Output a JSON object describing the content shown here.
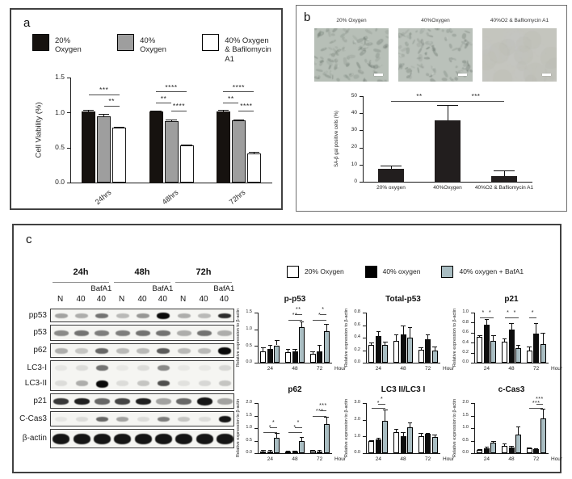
{
  "panels": {
    "a": {
      "letter": "a",
      "legend": [
        {
          "label": "20% Oxygen",
          "color": "#16120f"
        },
        {
          "label": "40% Oxygen",
          "color": "#9e9e9e"
        },
        {
          "label": "40% Oxygen\n& Bafilomycin A1",
          "color": "#ffffff"
        }
      ]
    },
    "b": {
      "letter": "b",
      "micrographs": [
        {
          "label": "20% Oxygen",
          "appearance": "cells"
        },
        {
          "label": "40%Oxygen",
          "appearance": "cells"
        },
        {
          "label": "40%O2 & Bafliomycin A1",
          "appearance": "blurred"
        }
      ]
    },
    "c": {
      "letter": "c",
      "legend": [
        {
          "label": "20% Oxygen",
          "color": "#ffffff"
        },
        {
          "label": "40% oxygen",
          "color": "#000000"
        },
        {
          "label": "40% oxygen + BafA1",
          "color": "#a9bdc2"
        }
      ],
      "blot": {
        "time_groups": [
          "24h",
          "48h",
          "72h"
        ],
        "treatment_label": "BafA1",
        "lane_labels": [
          "N",
          "40",
          "40",
          "N",
          "40",
          "40",
          "N",
          "40",
          "40"
        ],
        "rows": [
          {
            "label": "pp53",
            "bands": [
              0.35,
              0.3,
              0.55,
              0.25,
              0.4,
              1.0,
              0.3,
              0.25,
              0.85
            ]
          },
          {
            "label": "p53",
            "bands": [
              0.45,
              0.55,
              0.5,
              0.5,
              0.55,
              0.55,
              0.3,
              0.55,
              0.3
            ]
          },
          {
            "label": "p62",
            "bands": [
              0.3,
              0.2,
              0.6,
              0.25,
              0.25,
              0.65,
              0.25,
              0.25,
              1.0
            ]
          },
          {
            "labels": [
              "LC3-I",
              "LC3-II"
            ],
            "bands2": [
              [
                0.06,
                0.1,
                0.55,
                0.05,
                0.1,
                0.45,
                0.05,
                0.05,
                0.12
              ],
              [
                0.1,
                0.3,
                1.0,
                0.1,
                0.2,
                0.7,
                0.08,
                0.12,
                0.2
              ]
            ]
          },
          {
            "label": "p21",
            "bands": [
              0.8,
              0.9,
              0.6,
              0.75,
              0.9,
              0.35,
              0.6,
              0.95,
              0.35
            ]
          },
          {
            "label": "C-Cas3",
            "bands": [
              0.06,
              0.1,
              0.6,
              0.35,
              0.1,
              0.5,
              0.2,
              0.1,
              0.95
            ]
          },
          {
            "label": "β-actin",
            "bands": [
              0.95,
              0.95,
              0.95,
              0.95,
              0.95,
              0.95,
              0.95,
              0.95,
              0.95
            ]
          }
        ]
      }
    }
  },
  "chart_data": [
    {
      "id": "chart-a",
      "type": "grouped-bar",
      "title": "",
      "ylabel": "Cell Viability (%)",
      "xlabel": "",
      "ymax": 1.5,
      "ytick_values": [
        0,
        0.5,
        1.0,
        1.5
      ],
      "ytick_labels": [
        "0.0",
        "0.5",
        "1.0",
        "1.5"
      ],
      "categories": [
        "24hrs",
        "48hrs",
        "72hrs"
      ],
      "series": [
        {
          "name": "20% Oxygen",
          "color": "#16120f",
          "values": [
            1.01,
            1.01,
            1.01
          ],
          "errors": [
            0.02,
            0.01,
            0.02
          ]
        },
        {
          "name": "40% Oxygen",
          "color": "#9e9e9e",
          "border": "#1a1a1a",
          "values": [
            0.95,
            0.88,
            0.89
          ],
          "errors": [
            0.03,
            0.01,
            0.01
          ]
        },
        {
          "name": "40% Oxygen & Bafilomycin A1",
          "color": "#ffffff",
          "border": "#1a1a1a",
          "values": [
            0.78,
            0.53,
            0.42
          ],
          "errors": [
            0.01,
            0.01,
            0.01
          ]
        }
      ],
      "sig": [
        {
          "a": [
            0,
            0
          ],
          "b": [
            0,
            2
          ],
          "y": 1.26,
          "label": "***"
        },
        {
          "a": [
            0,
            1
          ],
          "b": [
            0,
            2
          ],
          "y": 1.1,
          "label": "**"
        },
        {
          "a": [
            1,
            0
          ],
          "b": [
            1,
            2
          ],
          "y": 1.3,
          "label": "****"
        },
        {
          "a": [
            1,
            0
          ],
          "b": [
            1,
            1
          ],
          "y": 1.14,
          "label": "**"
        },
        {
          "a": [
            1,
            1
          ],
          "b": [
            1,
            2
          ],
          "y": 1.03,
          "label": "****"
        },
        {
          "a": [
            2,
            0
          ],
          "b": [
            2,
            2
          ],
          "y": 1.3,
          "label": "****"
        },
        {
          "a": [
            2,
            0
          ],
          "b": [
            2,
            1
          ],
          "y": 1.14,
          "label": "**"
        },
        {
          "a": [
            2,
            1
          ],
          "b": [
            2,
            2
          ],
          "y": 1.03,
          "label": "****"
        }
      ]
    },
    {
      "id": "chart-b",
      "type": "bar",
      "title": "",
      "ylabel": "SA-β gal positive cells (%)",
      "xlabel": "",
      "ymax": 50,
      "ytick_values": [
        0,
        10,
        20,
        30,
        40,
        50
      ],
      "ytick_labels": [
        "0",
        "10",
        "20",
        "30",
        "40",
        "50"
      ],
      "categories": [
        "20% oxygen",
        "40%Oxygen",
        "40%O2 & Bafliomycin A1"
      ],
      "series": [
        {
          "name": "SA-β gal positive cells",
          "color": "#221e1e",
          "values": [
            7.5,
            36,
            3.5
          ],
          "errors": [
            1.5,
            8.5,
            3
          ]
        }
      ],
      "sig": [
        {
          "a": [
            0,
            0
          ],
          "b": [
            1,
            0
          ],
          "y": 47,
          "label": "**"
        },
        {
          "a": [
            1,
            0
          ],
          "b": [
            2,
            0
          ],
          "y": 47,
          "label": "***"
        }
      ]
    },
    {
      "id": "chart-pp53",
      "type": "grouped-bar",
      "title": "p-p53",
      "ylabel": "Relative expression to β-actin",
      "xlabel": "Hour",
      "ymax": 1.5,
      "ytick_values": [
        0,
        0.5,
        1.0,
        1.5
      ],
      "ytick_labels": [
        "0.0",
        "0.5",
        "1.0",
        "1.5"
      ],
      "categories": [
        "24",
        "48",
        "72"
      ],
      "series": [
        {
          "name": "20% Oxygen",
          "color": "#ffffff",
          "border": "#000000",
          "values": [
            0.35,
            0.32,
            0.26
          ],
          "errors": [
            0.1,
            0.07,
            0.06
          ]
        },
        {
          "name": "40% oxygen",
          "color": "#0d0d0d",
          "values": [
            0.41,
            0.34,
            0.34
          ],
          "errors": [
            0.12,
            0.05,
            0.17
          ]
        },
        {
          "name": "40% oxygen + BafA1",
          "color": "#a9bdc2",
          "border": "#000000",
          "values": [
            0.52,
            1.07,
            0.94
          ],
          "errors": [
            0.15,
            0.14,
            0.2
          ]
        }
      ],
      "sig": [
        {
          "a": [
            1,
            0
          ],
          "b": [
            1,
            2
          ],
          "y": 1.28,
          "label": "**"
        },
        {
          "a": [
            1,
            1
          ],
          "b": [
            1,
            2
          ],
          "y": 1.44,
          "label": "**"
        },
        {
          "a": [
            2,
            0
          ],
          "b": [
            2,
            2
          ],
          "y": 1.28,
          "label": "*"
        },
        {
          "a": [
            2,
            1
          ],
          "b": [
            2,
            2
          ],
          "y": 1.44,
          "label": "*"
        }
      ]
    },
    {
      "id": "chart-totalp53",
      "type": "grouped-bar",
      "title": "Total-p53",
      "ylabel": "Relative expression to β-actin",
      "xlabel": "Hour",
      "ymax": 0.8,
      "ytick_values": [
        0,
        0.2,
        0.4,
        0.6,
        0.8
      ],
      "ytick_labels": [
        "0.0",
        "0.2",
        "0.4",
        "0.6",
        "0.8"
      ],
      "categories": [
        "24",
        "48",
        "72"
      ],
      "series": [
        {
          "name": "20% Oxygen",
          "color": "#ffffff",
          "border": "#000000",
          "values": [
            0.29,
            0.35,
            0.21
          ],
          "errors": [
            0.02,
            0.1,
            0.03
          ]
        },
        {
          "name": "40% oxygen",
          "color": "#0d0d0d",
          "values": [
            0.43,
            0.45,
            0.37
          ],
          "errors": [
            0.07,
            0.14,
            0.07
          ]
        },
        {
          "name": "40% oxygen + BafA1",
          "color": "#a9bdc2",
          "border": "#000000",
          "values": [
            0.29,
            0.4,
            0.2
          ],
          "errors": [
            0.04,
            0.16,
            0.05
          ]
        }
      ],
      "sig": []
    },
    {
      "id": "chart-p21",
      "type": "grouped-bar",
      "title": "p21",
      "ylabel": "Relative expression to β-actin",
      "xlabel": "Hour",
      "ymax": 1.0,
      "ytick_values": [
        0,
        0.2,
        0.4,
        0.6,
        0.8,
        1.0
      ],
      "ytick_labels": [
        "0.0",
        "0.2",
        "0.4",
        "0.6",
        "0.8",
        "1.0"
      ],
      "categories": [
        "24",
        "48",
        "72"
      ],
      "series": [
        {
          "name": "20% Oxygen",
          "color": "#ffffff",
          "border": "#000000",
          "values": [
            0.51,
            0.42,
            0.24
          ],
          "errors": [
            0.03,
            0.05,
            0.08
          ]
        },
        {
          "name": "40% oxygen",
          "color": "#0d0d0d",
          "values": [
            0.76,
            0.66,
            0.58
          ],
          "errors": [
            0.1,
            0.12,
            0.2
          ]
        },
        {
          "name": "40% oxygen + BafA1",
          "color": "#a9bdc2",
          "border": "#000000",
          "values": [
            0.44,
            0.29,
            0.37
          ],
          "errors": [
            0.1,
            0.06,
            0.22
          ]
        }
      ],
      "sig": [
        {
          "a": [
            0,
            0
          ],
          "b": [
            0,
            1
          ],
          "y": 0.9,
          "label": "*"
        },
        {
          "a": [
            0,
            1
          ],
          "b": [
            0,
            2
          ],
          "y": 0.9,
          "label": "*"
        },
        {
          "a": [
            1,
            0
          ],
          "b": [
            1,
            1
          ],
          "y": 0.9,
          "label": "*"
        },
        {
          "a": [
            1,
            1
          ],
          "b": [
            1,
            2
          ],
          "y": 0.9,
          "label": "*"
        },
        {
          "a": [
            2,
            0
          ],
          "b": [
            2,
            1
          ],
          "y": 0.9,
          "label": "*"
        }
      ]
    },
    {
      "id": "chart-p62",
      "type": "grouped-bar",
      "title": "p62",
      "ylabel": "Relative expression to β-actin",
      "xlabel": "Hour",
      "ymax": 2.0,
      "ytick_values": [
        0,
        0.5,
        1.0,
        1.5,
        2.0
      ],
      "ytick_labels": [
        "0.0",
        "0.5",
        "1.0",
        "1.5",
        "2.0"
      ],
      "categories": [
        "24",
        "48",
        "72"
      ],
      "series": [
        {
          "name": "20% Oxygen",
          "color": "#ffffff",
          "border": "#000000",
          "values": [
            0.08,
            0.07,
            0.09
          ],
          "errors": [
            0.02,
            0.02,
            0.02
          ]
        },
        {
          "name": "40% oxygen",
          "color": "#0d0d0d",
          "values": [
            0.08,
            0.05,
            0.08
          ],
          "errors": [
            0.02,
            0.02,
            0.02
          ]
        },
        {
          "name": "40% oxygen + BafA1",
          "color": "#a9bdc2",
          "border": "#000000",
          "values": [
            0.6,
            0.49,
            1.17
          ],
          "errors": [
            0.18,
            0.15,
            0.28
          ]
        }
      ],
      "sig": [
        {
          "a": [
            0,
            0
          ],
          "b": [
            0,
            2
          ],
          "y": 0.85,
          "label": "*"
        },
        {
          "a": [
            0,
            1
          ],
          "b": [
            0,
            2
          ],
          "y": 1.04,
          "label": "*"
        },
        {
          "a": [
            1,
            0
          ],
          "b": [
            1,
            2
          ],
          "y": 0.85,
          "label": "*"
        },
        {
          "a": [
            1,
            1
          ],
          "b": [
            1,
            2
          ],
          "y": 1.04,
          "label": "*"
        },
        {
          "a": [
            2,
            0
          ],
          "b": [
            2,
            2
          ],
          "y": 1.5,
          "label": "***"
        },
        {
          "a": [
            2,
            1
          ],
          "b": [
            2,
            2
          ],
          "y": 1.72,
          "label": "***"
        }
      ]
    },
    {
      "id": "chart-lc3",
      "type": "grouped-bar",
      "title": "LC3 II/LC3 I",
      "ylabel": "Relative expression to β-actin",
      "xlabel": "Hour",
      "ymax": 3.0,
      "ytick_values": [
        0,
        1.0,
        2.0,
        3.0
      ],
      "ytick_labels": [
        "0.0",
        "1.0",
        "2.0",
        "3.0"
      ],
      "categories": [
        "24",
        "48",
        "72"
      ],
      "series": [
        {
          "name": "20% Oxygen",
          "color": "#ffffff",
          "border": "#000000",
          "values": [
            0.72,
            1.24,
            1.02
          ],
          "errors": [
            0.05,
            0.18,
            0.15
          ]
        },
        {
          "name": "40% oxygen",
          "color": "#0d0d0d",
          "values": [
            0.83,
            1.0,
            1.15
          ],
          "errors": [
            0.06,
            0.22,
            0.05
          ]
        },
        {
          "name": "40% oxygen + BafA1",
          "color": "#a9bdc2",
          "border": "#000000",
          "values": [
            1.93,
            1.53,
            0.97
          ],
          "errors": [
            0.65,
            0.28,
            0.13
          ]
        }
      ],
      "sig": [
        {
          "a": [
            0,
            0
          ],
          "b": [
            0,
            2
          ],
          "y": 2.7,
          "label": "*"
        },
        {
          "a": [
            0,
            1
          ],
          "b": [
            0,
            2
          ],
          "y": 2.95,
          "label": "*"
        }
      ]
    },
    {
      "id": "chart-ccas3",
      "type": "grouped-bar",
      "title": "c-Cas3",
      "ylabel": "Relative expression to β-actin",
      "xlabel": "Hour",
      "ymax": 2.0,
      "ytick_values": [
        0,
        0.5,
        1.0,
        1.5,
        2.0
      ],
      "ytick_labels": [
        "0.0",
        "0.5",
        "1.0",
        "1.5",
        "2.0"
      ],
      "categories": [
        "24",
        "48",
        "72"
      ],
      "series": [
        {
          "name": "20% Oxygen",
          "color": "#ffffff",
          "border": "#000000",
          "values": [
            0.12,
            0.3,
            0.19
          ],
          "errors": [
            0.03,
            0.08,
            0.02
          ]
        },
        {
          "name": "40% oxygen",
          "color": "#0d0d0d",
          "values": [
            0.19,
            0.22,
            0.16
          ],
          "errors": [
            0.04,
            0.05,
            0.03
          ]
        },
        {
          "name": "40% oxygen + BafA1",
          "color": "#a9bdc2",
          "border": "#000000",
          "values": [
            0.41,
            0.73,
            1.38
          ],
          "errors": [
            0.06,
            0.33,
            0.38
          ]
        }
      ],
      "sig": [
        {
          "a": [
            2,
            0
          ],
          "b": [
            2,
            2
          ],
          "y": 1.8,
          "label": "***"
        },
        {
          "a": [
            2,
            1
          ],
          "b": [
            2,
            2
          ],
          "y": 1.98,
          "label": "***"
        }
      ]
    }
  ]
}
